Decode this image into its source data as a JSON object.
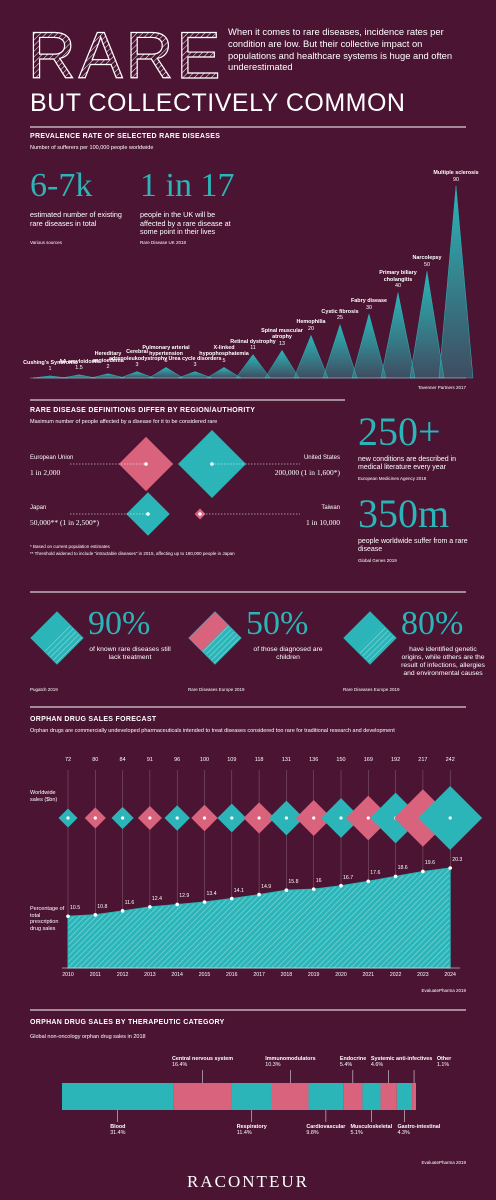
{
  "header": {
    "title": "RARE",
    "subtitle": "BUT COLLECTIVELY COMMON",
    "intro": "When it comes to rare diseases, incidence rates per condition are low. But their collective impact on populations and healthcare systems is huge and often underestimated"
  },
  "stats_top": [
    {
      "value": "6-7k",
      "text": "estimated number of existing rare diseases in total",
      "source": "Various sources"
    },
    {
      "value": "1 in 17",
      "text": "people in the UK will be affected by a rare disease at some point in their lives",
      "source": "Rare Disease UK 2018"
    }
  ],
  "stats_side": [
    {
      "value": "250+",
      "text": "new conditions are described in medical literature every year",
      "source": "European Medicines Agency 2018"
    },
    {
      "value": "350m",
      "text": "people worldwide suffer from a rare disease",
      "source": "Global Genes 2019"
    }
  ],
  "stats_row": [
    {
      "value": "90%",
      "text": "of known rare diseases still lack treatment",
      "source": "Pugatch 2019"
    },
    {
      "value": "50%",
      "text": "of those diagnosed are children",
      "source": "Rare Diseases Europe 2019"
    },
    {
      "value": "80%",
      "text": "have identified genetic origins, while others are the result of infections, allergies and environmental causes",
      "source": "Rare Diseases Europe 2019"
    }
  ],
  "chart_data": [
    {
      "type": "triangle",
      "title": "PREVALENCE RATE OF SELECTED RARE DISEASES",
      "subtitle": "Number of sufferers per 100,000 people worldwide",
      "categories": [
        "Cushing's Syndrome",
        "AA amyloidosis",
        "Hereditary angioedema",
        "Cerebral adrenoleukodystrophy",
        "Pulmonary arterial hypertension",
        "Urea cycle disorders",
        "X-linked hypophosphatemia",
        "Retinal dystrophy",
        "Spinal muscular atrophy",
        "Hemophilia",
        "Cystic fibrosis",
        "Fabry disease",
        "Primary biliary cholangitis",
        "Narcolepsy",
        "Multiple sclerosis"
      ],
      "values": [
        1,
        1.5,
        2,
        3,
        5,
        3,
        5,
        11,
        13,
        20,
        25,
        30,
        40,
        50,
        90
      ],
      "color": "#2bb5b8",
      "source": "Tavenner Partners 2017"
    },
    {
      "type": "diamond",
      "title": "RARE DISEASE DEFINITIONS DIFFER BY REGION/AUTHORITY",
      "subtitle": "Maximum number of people affected by a disease for it to be considered rare",
      "categories": [
        "European Union",
        "United States",
        "Japan",
        "Taiwan"
      ],
      "values": [
        2000,
        1600,
        2500,
        10000
      ],
      "value_labels": [
        "1 in 2,000",
        "200,000 (1 in 1,600*)",
        "50,000** (1 in 2,500*)",
        "1 in 10,000"
      ],
      "colors": [
        "#d9627c",
        "#2bb5b8",
        "#2bb5b8",
        "#d9627c"
      ],
      "notes": [
        "* Based on current population estimates",
        "** Threshold widened to include \"intractable diseases\" in 2015, affecting up to 180,000 people in Japan"
      ]
    },
    {
      "type": "forecast",
      "title": "ORPHAN DRUG SALES FORECAST",
      "subtitle": "Orphan drugs are commercially undeveloped pharmaceuticals intended to treat diseases considered too rare for traditional research and development",
      "x": [
        "2010",
        "2011",
        "2012",
        "2013",
        "2014",
        "2015",
        "2016",
        "2017",
        "2018",
        "2019",
        "2020",
        "2021",
        "2022",
        "2023",
        "2024"
      ],
      "series": [
        {
          "name": "Worldwide sales ($bn)",
          "colors": [
            "#2bb5b8",
            "#d9627c"
          ],
          "values": [
            72,
            80,
            84,
            91,
            96,
            100,
            109,
            118,
            131,
            136,
            150,
            169,
            192,
            217,
            242
          ]
        },
        {
          "name": "Percentage of total prescription drug sales",
          "color": "#2bb5b8",
          "values": [
            10.5,
            10.8,
            11.6,
            12.4,
            12.9,
            13.4,
            14.1,
            14.9,
            15.8,
            16,
            16.7,
            17.6,
            18.6,
            19.6,
            20.3
          ]
        }
      ],
      "source": "EvaluatePharma 2019"
    },
    {
      "type": "stacked-bar",
      "title": "ORPHAN DRUG SALES BY THERAPEUTIC CATEGORY",
      "subtitle": "Global non-oncology orphan drug sales in 2018",
      "categories": [
        "Blood",
        "Central nervous system",
        "Respiratory",
        "Immunomodulators",
        "Cardiovascular",
        "Endocrine",
        "Musculoskeletal",
        "Systemic anti-infectives",
        "Gastro-intestinal",
        "Other"
      ],
      "values": [
        31.4,
        16.4,
        11.4,
        10.3,
        9.8,
        5.4,
        5.1,
        4.6,
        4.3,
        1.1
      ],
      "value_labels": [
        "31.4%",
        "16.4%",
        "11.4%",
        "10.3%",
        "9.8%",
        "5.4%",
        "5.1%",
        "4.6%",
        "4.3%",
        "1.1%"
      ],
      "colors": [
        "#2bb5b8",
        "#d9627c"
      ],
      "source": "EvaluatePharma 2019"
    }
  ],
  "footer": "RACONTEUR"
}
